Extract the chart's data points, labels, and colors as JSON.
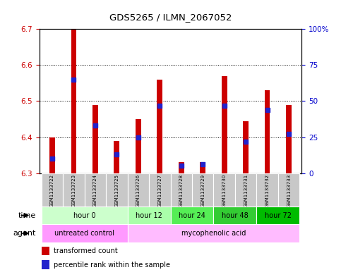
{
  "title": "GDS5265 / ILMN_2067052",
  "samples": [
    "GSM1133722",
    "GSM1133723",
    "GSM1133724",
    "GSM1133725",
    "GSM1133726",
    "GSM1133727",
    "GSM1133728",
    "GSM1133729",
    "GSM1133730",
    "GSM1133731",
    "GSM1133732",
    "GSM1133733"
  ],
  "transformed_count": [
    6.4,
    6.7,
    6.49,
    6.39,
    6.45,
    6.56,
    6.33,
    6.33,
    6.57,
    6.445,
    6.53,
    6.49
  ],
  "percentile_rank": [
    10,
    65,
    33,
    13,
    25,
    47,
    5,
    6,
    47,
    22,
    44,
    27
  ],
  "red_bar_bottom": 6.3,
  "ylim_left": [
    6.3,
    6.7
  ],
  "ylim_right": [
    0,
    100
  ],
  "yticks_left": [
    6.3,
    6.4,
    6.5,
    6.6,
    6.7
  ],
  "yticks_right": [
    0,
    25,
    50,
    75,
    100
  ],
  "ytick_labels_right": [
    "0",
    "25",
    "50",
    "75",
    "100%"
  ],
  "red_color": "#cc0000",
  "blue_color": "#2222cc",
  "bar_width": 0.25,
  "time_groups": [
    {
      "label": "hour 0",
      "start": 0,
      "end": 3,
      "color": "#ccffcc"
    },
    {
      "label": "hour 12",
      "start": 4,
      "end": 5,
      "color": "#aaffaa"
    },
    {
      "label": "hour 24",
      "start": 6,
      "end": 7,
      "color": "#55ee55"
    },
    {
      "label": "hour 48",
      "start": 8,
      "end": 9,
      "color": "#33cc33"
    },
    {
      "label": "hour 72",
      "start": 10,
      "end": 11,
      "color": "#00bb00"
    }
  ],
  "agent_groups": [
    {
      "label": "untreated control",
      "start": 0,
      "end": 3,
      "color": "#ff99ff"
    },
    {
      "label": "mycophenolic acid",
      "start": 4,
      "end": 11,
      "color": "#ffbbff"
    }
  ],
  "legend_red": "transformed count",
  "legend_blue": "percentile rank within the sample",
  "axis_color_left": "#cc0000",
  "axis_color_right": "#0000cc",
  "grid_yticks": [
    6.4,
    6.5,
    6.6
  ]
}
